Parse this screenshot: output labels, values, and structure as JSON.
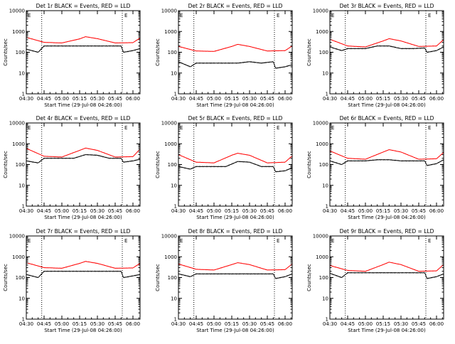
{
  "colors": {
    "events": "#000000",
    "lld": "#ff0000",
    "background": "#ffffff",
    "axes": "#000000"
  },
  "common": {
    "ylabel": "Counts/sec",
    "xlabel": "Start Time (29-Jul-08 04:26:00)",
    "xticks": [
      "04:30",
      "04:45",
      "05:00",
      "05:15",
      "05:30",
      "05:45",
      "06:00"
    ],
    "yticks": [
      "1",
      "10",
      "100",
      "1000",
      "10000"
    ],
    "marker_left": "E",
    "marker_right": "E"
  },
  "chart_data": [
    {
      "type": "line",
      "title": "Det 1r BLACK = Events, RED = LLD",
      "xlabel": "Start Time (29-Jul-08 04:26:00)",
      "ylabel": "Counts/sec",
      "y_scale": "log",
      "ylim": [
        1,
        10000
      ],
      "xlim": [
        "04:30",
        "06:06"
      ],
      "vlines": [
        "04:43",
        "05:51"
      ],
      "series": [
        {
          "name": "LLD",
          "x": [
            "04:30",
            "04:45",
            "05:00",
            "05:15",
            "05:20",
            "05:30",
            "05:45",
            "06:00",
            "06:06"
          ],
          "values": [
            520,
            300,
            280,
            440,
            560,
            450,
            280,
            290,
            480
          ]
        },
        {
          "name": "Events",
          "x": [
            "04:30",
            "04:40",
            "04:45",
            "05:00",
            "05:10",
            "05:20",
            "05:30",
            "05:40",
            "05:50",
            "05:52",
            "06:00",
            "06:06"
          ],
          "values": [
            140,
            100,
            200,
            200,
            200,
            200,
            200,
            200,
            200,
            100,
            120,
            150
          ]
        }
      ]
    },
    {
      "type": "line",
      "title": "Det 2r BLACK = Events, RED = LLD",
      "xlabel": "Start Time (29-Jul-08 04:26:00)",
      "ylabel": "Counts/sec",
      "y_scale": "log",
      "ylim": [
        1,
        10000
      ],
      "xlim": [
        "04:30",
        "06:06"
      ],
      "vlines": [
        "04:43",
        "05:51"
      ],
      "series": [
        {
          "name": "LLD",
          "x": [
            "04:30",
            "04:45",
            "05:00",
            "05:15",
            "05:20",
            "05:30",
            "05:45",
            "06:00",
            "06:06"
          ],
          "values": [
            190,
            115,
            110,
            190,
            240,
            190,
            115,
            120,
            200
          ]
        },
        {
          "name": "Events",
          "x": [
            "04:30",
            "04:40",
            "04:45",
            "05:00",
            "05:10",
            "05:20",
            "05:30",
            "05:40",
            "05:50",
            "05:52",
            "06:00",
            "06:06"
          ],
          "values": [
            35,
            20,
            30,
            30,
            30,
            30,
            35,
            30,
            35,
            17,
            20,
            25
          ]
        }
      ]
    },
    {
      "type": "line",
      "title": "Det 3r BLACK = Events, RED = LLD",
      "xlabel": "Start Time (29-Jul-08 04:26:00)",
      "ylabel": "Counts/sec",
      "y_scale": "log",
      "ylim": [
        1,
        10000
      ],
      "xlim": [
        "04:30",
        "06:06"
      ],
      "vlines": [
        "04:43",
        "05:51"
      ],
      "series": [
        {
          "name": "LLD",
          "x": [
            "04:30",
            "04:45",
            "05:00",
            "05:15",
            "05:20",
            "05:30",
            "05:45",
            "06:00",
            "06:06"
          ],
          "values": [
            420,
            200,
            180,
            350,
            450,
            350,
            190,
            200,
            400
          ]
        },
        {
          "name": "Events",
          "x": [
            "04:30",
            "04:40",
            "04:45",
            "05:00",
            "05:10",
            "05:20",
            "05:30",
            "05:40",
            "05:50",
            "05:52",
            "06:00",
            "06:06"
          ],
          "values": [
            180,
            120,
            150,
            150,
            200,
            200,
            150,
            150,
            160,
            100,
            120,
            180
          ]
        }
      ]
    },
    {
      "type": "line",
      "title": "Det 4r BLACK = Events, RED = LLD",
      "xlabel": "Start Time (29-Jul-08 04:26:00)",
      "ylabel": "Counts/sec",
      "y_scale": "log",
      "ylim": [
        1,
        10000
      ],
      "xlim": [
        "04:30",
        "06:06"
      ],
      "vlines": [
        "04:43",
        "05:51"
      ],
      "series": [
        {
          "name": "LLD",
          "x": [
            "04:30",
            "04:45",
            "05:00",
            "05:15",
            "05:20",
            "05:30",
            "05:45",
            "06:00",
            "06:06"
          ],
          "values": [
            600,
            250,
            230,
            480,
            620,
            480,
            230,
            240,
            550
          ]
        },
        {
          "name": "Events",
          "x": [
            "04:30",
            "04:40",
            "04:45",
            "05:00",
            "05:10",
            "05:20",
            "05:30",
            "05:40",
            "05:50",
            "05:52",
            "06:00",
            "06:06"
          ],
          "values": [
            150,
            120,
            200,
            200,
            200,
            300,
            280,
            200,
            200,
            130,
            150,
            180
          ]
        }
      ]
    },
    {
      "type": "line",
      "title": "Det 5r BLACK = Events, RED = LLD",
      "xlabel": "Start Time (29-Jul-08 04:26:00)",
      "ylabel": "Counts/sec",
      "y_scale": "log",
      "ylim": [
        1,
        10000
      ],
      "xlim": [
        "04:30",
        "06:06"
      ],
      "vlines": [
        "04:43",
        "05:51"
      ],
      "series": [
        {
          "name": "LLD",
          "x": [
            "04:30",
            "04:45",
            "05:00",
            "05:15",
            "05:20",
            "05:30",
            "05:45",
            "06:00",
            "06:06"
          ],
          "values": [
            300,
            130,
            120,
            280,
            350,
            280,
            120,
            130,
            260
          ]
        },
        {
          "name": "Events",
          "x": [
            "04:30",
            "04:40",
            "04:45",
            "05:00",
            "05:10",
            "05:20",
            "05:30",
            "05:40",
            "05:50",
            "05:52",
            "06:00",
            "06:06"
          ],
          "values": [
            80,
            60,
            80,
            80,
            80,
            140,
            130,
            80,
            80,
            45,
            50,
            70
          ]
        }
      ]
    },
    {
      "type": "line",
      "title": "Det 6r BLACK = Events, RED = LLD",
      "xlabel": "Start Time (29-Jul-08 04:26:00)",
      "ylabel": "Counts/sec",
      "y_scale": "log",
      "ylim": [
        1,
        10000
      ],
      "xlim": [
        "04:30",
        "06:06"
      ],
      "vlines": [
        "04:43",
        "05:51"
      ],
      "series": [
        {
          "name": "LLD",
          "x": [
            "04:30",
            "04:45",
            "05:00",
            "05:15",
            "05:20",
            "05:30",
            "05:45",
            "06:00",
            "06:06"
          ],
          "values": [
            450,
            200,
            180,
            400,
            520,
            400,
            180,
            190,
            380
          ]
        },
        {
          "name": "Events",
          "x": [
            "04:30",
            "04:40",
            "04:45",
            "05:00",
            "05:10",
            "05:20",
            "05:30",
            "05:40",
            "05:50",
            "05:52",
            "06:00",
            "06:06"
          ],
          "values": [
            150,
            100,
            150,
            150,
            170,
            170,
            150,
            150,
            150,
            90,
            110,
            170
          ]
        }
      ]
    },
    {
      "type": "line",
      "title": "Det 7r BLACK = Events, RED = LLD",
      "xlabel": "Start Time (29-Jul-08 04:26:00)",
      "ylabel": "Counts/sec",
      "y_scale": "log",
      "ylim": [
        1,
        10000
      ],
      "xlim": [
        "04:30",
        "06:06"
      ],
      "vlines": [
        "04:43",
        "05:51"
      ],
      "series": [
        {
          "name": "LLD",
          "x": [
            "04:30",
            "04:45",
            "05:00",
            "05:15",
            "05:20",
            "05:30",
            "05:45",
            "06:00",
            "06:06"
          ],
          "values": [
            520,
            300,
            280,
            480,
            600,
            480,
            280,
            290,
            480
          ]
        },
        {
          "name": "Events",
          "x": [
            "04:30",
            "04:40",
            "04:45",
            "05:00",
            "05:10",
            "05:20",
            "05:30",
            "05:40",
            "05:50",
            "05:52",
            "06:00",
            "06:06"
          ],
          "values": [
            140,
            100,
            200,
            200,
            200,
            200,
            200,
            200,
            200,
            100,
            120,
            140
          ]
        }
      ]
    },
    {
      "type": "line",
      "title": "Det 8r BLACK = Events, RED = LLD",
      "xlabel": "Start Time (29-Jul-08 04:26:00)",
      "ylabel": "Counts/sec",
      "y_scale": "log",
      "ylim": [
        1,
        10000
      ],
      "xlim": [
        "04:30",
        "06:06"
      ],
      "vlines": [
        "04:43",
        "05:51"
      ],
      "series": [
        {
          "name": "LLD",
          "x": [
            "04:30",
            "04:45",
            "05:00",
            "05:15",
            "05:20",
            "05:30",
            "05:45",
            "06:00",
            "06:06"
          ],
          "values": [
            450,
            250,
            230,
            420,
            520,
            420,
            230,
            240,
            450
          ]
        },
        {
          "name": "Events",
          "x": [
            "04:30",
            "04:40",
            "04:45",
            "05:00",
            "05:10",
            "05:20",
            "05:30",
            "05:40",
            "05:50",
            "05:52",
            "06:00",
            "06:06"
          ],
          "values": [
            150,
            110,
            150,
            150,
            150,
            150,
            150,
            150,
            150,
            90,
            110,
            150
          ]
        }
      ]
    },
    {
      "type": "line",
      "title": "Det 9r BLACK = Events, RED = LLD",
      "xlabel": "Start Time (29-Jul-08 04:26:00)",
      "ylabel": "Counts/sec",
      "y_scale": "log",
      "ylim": [
        1,
        10000
      ],
      "xlim": [
        "04:30",
        "06:06"
      ],
      "vlines": [
        "04:43",
        "05:51"
      ],
      "series": [
        {
          "name": "LLD",
          "x": [
            "04:30",
            "04:45",
            "05:00",
            "05:15",
            "05:20",
            "05:30",
            "05:45",
            "06:00",
            "06:06"
          ],
          "values": [
            380,
            220,
            200,
            420,
            550,
            420,
            200,
            210,
            420
          ]
        },
        {
          "name": "Events",
          "x": [
            "04:30",
            "04:40",
            "04:45",
            "05:00",
            "05:10",
            "05:20",
            "05:30",
            "05:40",
            "05:50",
            "05:52",
            "06:00",
            "06:06"
          ],
          "values": [
            160,
            100,
            170,
            170,
            170,
            170,
            170,
            170,
            170,
            90,
            110,
            150
          ]
        }
      ]
    }
  ]
}
